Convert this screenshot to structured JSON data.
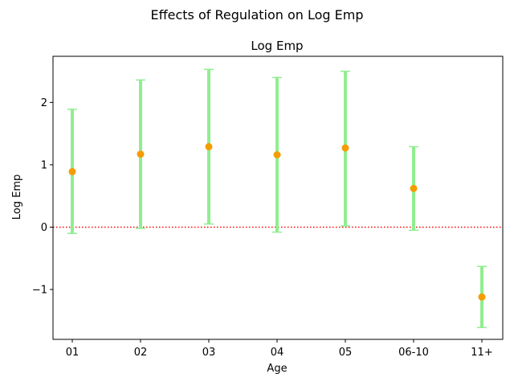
{
  "figure": {
    "suptitle": "Effects of Regulation on Log Emp"
  },
  "chart_data": {
    "type": "scatter",
    "title": "Log Emp",
    "xlabel": "Age",
    "ylabel": "Log Emp",
    "categories": [
      "01",
      "02",
      "03",
      "04",
      "05",
      "06-10",
      "11+"
    ],
    "series": [
      {
        "values": [
          0.89,
          1.17,
          1.29,
          1.16,
          1.27,
          0.62,
          -1.12
        ],
        "ci_lower": [
          -0.1,
          -0.02,
          0.05,
          -0.08,
          0.02,
          -0.05,
          -1.61
        ],
        "ci_upper": [
          1.89,
          2.36,
          2.53,
          2.4,
          2.5,
          1.29,
          -0.63
        ]
      }
    ],
    "ylim": [
      -1.8,
      2.74
    ],
    "yticks": [
      {
        "value": -1,
        "label": "−1"
      },
      {
        "value": 0,
        "label": "0"
      },
      {
        "value": 1,
        "label": "1"
      },
      {
        "value": 2,
        "label": "2"
      }
    ],
    "reference_line": {
      "value": 0,
      "style": "dotted"
    },
    "grid": false,
    "colors": {
      "point": "#f59c00",
      "errorbar": "#90ee90",
      "reference_line": "#ff0000",
      "axes": "#000000"
    }
  }
}
